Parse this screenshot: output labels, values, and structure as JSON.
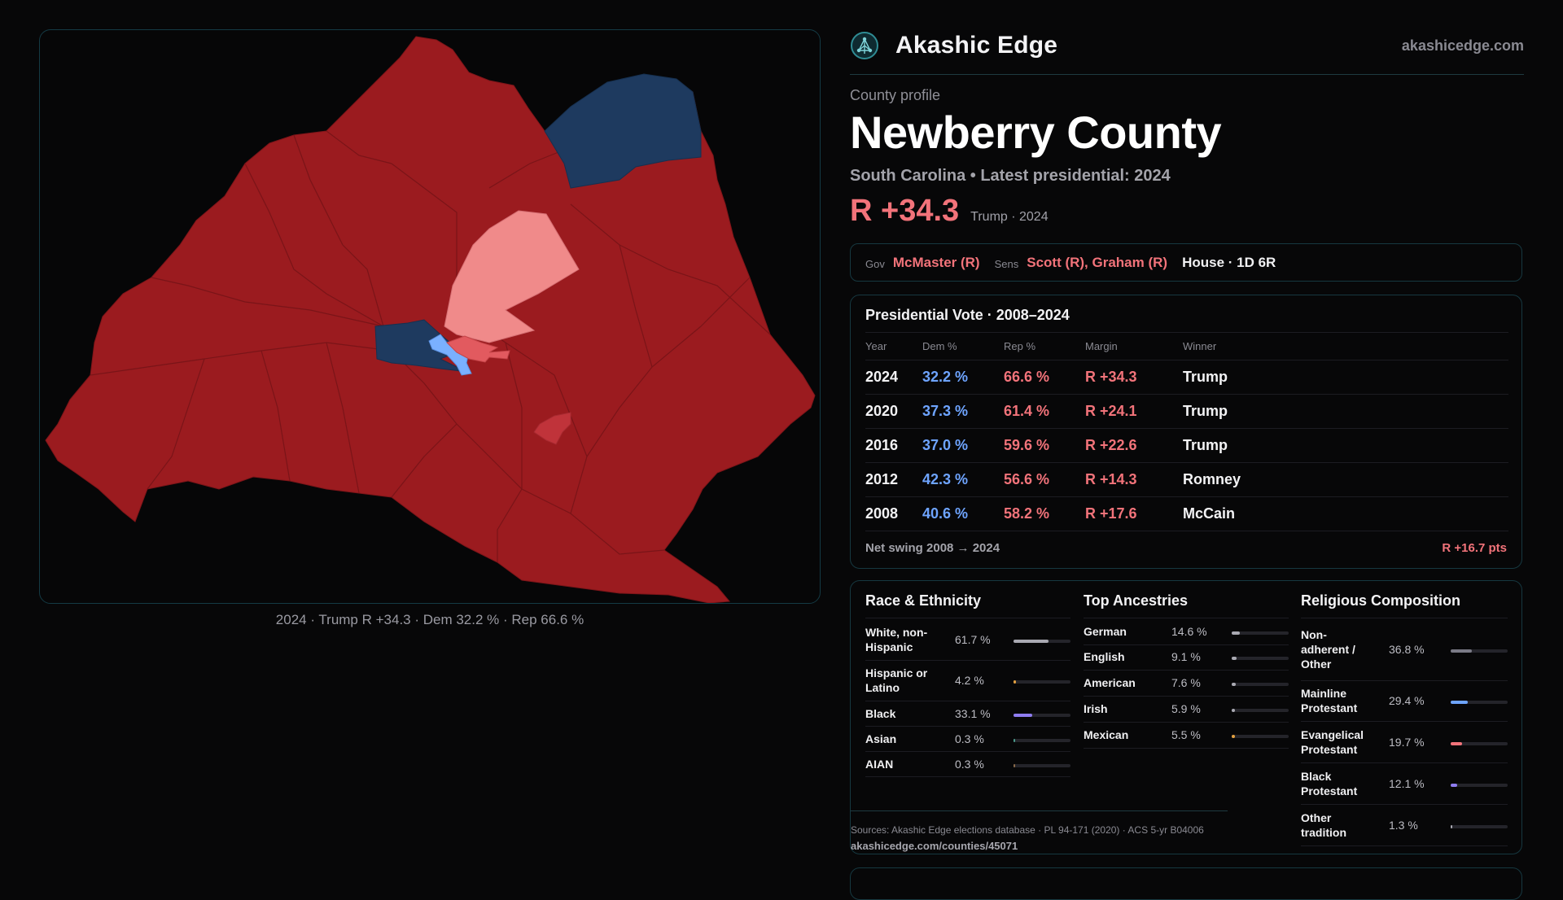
{
  "brand": {
    "name": "Akashic Edge",
    "site": "akashicedge.com",
    "logo_icon": "network-globe-icon"
  },
  "county": {
    "eyebrow": "County profile",
    "name": "Newberry County",
    "subtitle": "South Carolina • Latest presidential: 2024",
    "margin": "R +34.3",
    "margin_sub": "Trump · 2024"
  },
  "officials": {
    "gov_label": "Gov",
    "gov": "McMaster (R)",
    "sens_label": "Sens",
    "sens": "Scott (R), Graham (R)",
    "house": "House · 1D 6R"
  },
  "map": {
    "caption": "2024 · Trump R +34.3 · Dem 32.2 % · Rep 66.6 %",
    "colors": {
      "safe_r": "#9b1b1f",
      "lean_r": "#f08a8a",
      "tilt_r": "#e25a5f",
      "safe_d": "#1e3a5f",
      "lean_d": "#7ab0ff"
    }
  },
  "presidential": {
    "title": "Presidential Vote · 2008–2024",
    "headers": [
      "Year",
      "Dem %",
      "Rep %",
      "Margin",
      "Winner"
    ],
    "rows": [
      {
        "year": "2024",
        "dem": "32.2 %",
        "rep": "66.6 %",
        "margin": "R +34.3",
        "winner": "Trump"
      },
      {
        "year": "2020",
        "dem": "37.3 %",
        "rep": "61.4 %",
        "margin": "R +24.1",
        "winner": "Trump"
      },
      {
        "year": "2016",
        "dem": "37.0 %",
        "rep": "59.6 %",
        "margin": "R +22.6",
        "winner": "Trump"
      },
      {
        "year": "2012",
        "dem": "42.3 %",
        "rep": "56.6 %",
        "margin": "R +14.3",
        "winner": "Romney"
      },
      {
        "year": "2008",
        "dem": "40.6 %",
        "rep": "58.2 %",
        "margin": "R +17.6",
        "winner": "McCain"
      }
    ],
    "swing_label": "Net swing 2008 → 2024",
    "swing_value": "R +16.7 pts"
  },
  "race": {
    "title": "Race & Ethnicity",
    "rows": [
      {
        "label": "White, non-Hispanic",
        "value": "61.7 %",
        "pct": 61.7,
        "color": "#a9a9b2"
      },
      {
        "label": "Hispanic or Latino",
        "value": "4.2 %",
        "pct": 4.2,
        "color": "#e2a040"
      },
      {
        "label": "Black",
        "value": "33.1 %",
        "pct": 33.1,
        "color": "#8e7cf0"
      },
      {
        "label": "Asian",
        "value": "0.3 %",
        "pct": 0.3,
        "color": "#4a9a8a"
      },
      {
        "label": "AIAN",
        "value": "0.3 %",
        "pct": 0.3,
        "color": "#8a6a4a"
      }
    ]
  },
  "ancestries": {
    "title": "Top Ancestries",
    "rows": [
      {
        "label": "German",
        "value": "14.6 %",
        "pct": 14.6,
        "color": "#a9a9b2"
      },
      {
        "label": "English",
        "value": "9.1 %",
        "pct": 9.1,
        "color": "#a9a9b2"
      },
      {
        "label": "American",
        "value": "7.6 %",
        "pct": 7.6,
        "color": "#a9a9b2"
      },
      {
        "label": "Irish",
        "value": "5.9 %",
        "pct": 5.9,
        "color": "#a9a9b2"
      },
      {
        "label": "Mexican",
        "value": "5.5 %",
        "pct": 5.5,
        "color": "#e2a040"
      }
    ]
  },
  "religion": {
    "title": "Religious Composition",
    "rows": [
      {
        "label": "Non-adherent / Other",
        "value": "36.8 %",
        "pct": 36.8,
        "color": "#7a7a86"
      },
      {
        "label": "Mainline Protestant",
        "value": "29.4 %",
        "pct": 29.4,
        "color": "#6ea4ff"
      },
      {
        "label": "Evangelical Protestant",
        "value": "19.7 %",
        "pct": 19.7,
        "color": "#f2737a"
      },
      {
        "label": "Black Protestant",
        "value": "12.1 %",
        "pct": 12.1,
        "color": "#8e7cf0"
      },
      {
        "label": "Other tradition",
        "value": "1.3 %",
        "pct": 1.3,
        "color": "#a9a9b2"
      }
    ]
  },
  "sources": {
    "text": "Sources: Akashic Edge elections database · PL 94-171 (2020) · ACS 5-yr B04006",
    "url": "akashicedge.com/counties/45071"
  }
}
